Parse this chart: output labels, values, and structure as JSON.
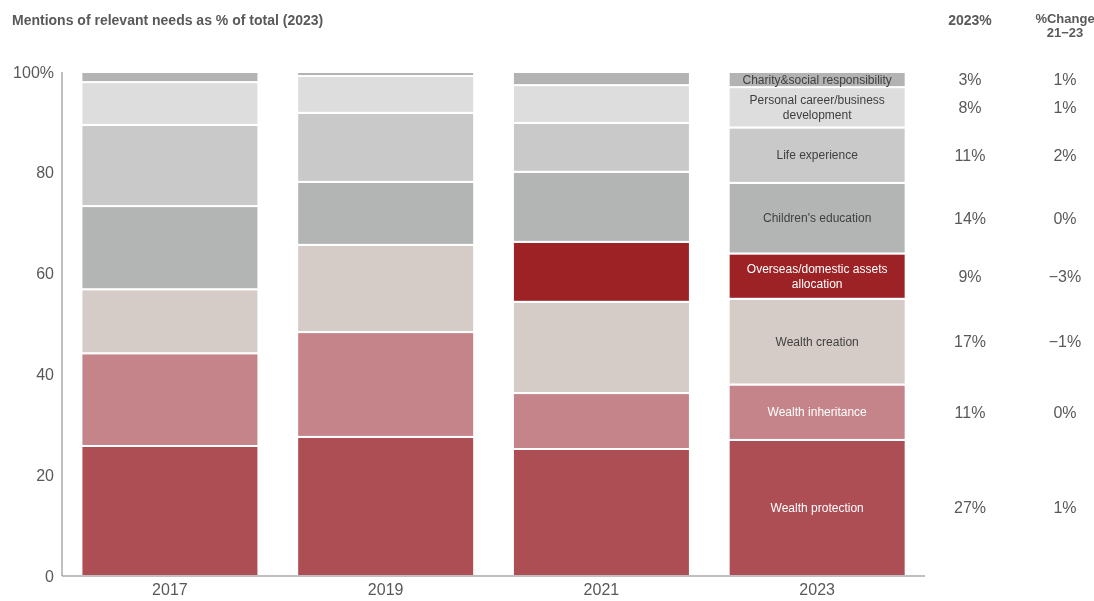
{
  "chart_data": {
    "type": "bar",
    "title": "Mentions of relevant needs as % of total (2023)",
    "stacked": true,
    "categories": [
      "2017",
      "2019",
      "2021",
      "2023"
    ],
    "ylim": [
      0,
      100
    ],
    "yticks": [
      0,
      20,
      40,
      60,
      80,
      {
        "value": 100,
        "label": "100%"
      }
    ],
    "series": [
      {
        "name": "Wealth protection",
        "color": "#ad4e55",
        "values": [
          25.8,
          27.6,
          25.2,
          27
        ]
      },
      {
        "name": "Wealth inheritance",
        "color": "#c4848a",
        "values": [
          18.4,
          20.8,
          11.1,
          11
        ]
      },
      {
        "name": "Wealth creation",
        "color": "#d6ccc7",
        "values": [
          12.7,
          17.3,
          18.1,
          17
        ]
      },
      {
        "name": "Overseas/domestic assets allocation",
        "color": "#9d2226",
        "values": [
          null,
          null,
          11.9,
          9
        ]
      },
      {
        "name": "Children's education",
        "color": "#b3b5b4",
        "values": [
          16.5,
          12.5,
          13.9,
          14
        ]
      },
      {
        "name": "Life experience",
        "color": "#c8c9c8",
        "values": [
          16.1,
          13.7,
          9.7,
          11
        ]
      },
      {
        "name": "Personal career/business development",
        "color": "#dcdddc",
        "values": [
          8.5,
          7.3,
          7.5,
          8
        ]
      },
      {
        "name": "Charity&social responsibility",
        "color": "#b3b3b3",
        "values": [
          2.0,
          0.8,
          2.6,
          3
        ]
      }
    ],
    "annotations": [
      "2023%",
      "%Change 21−23",
      "27%",
      "1%",
      "11%",
      "0%",
      "17%",
      "−1%",
      "9%",
      "−3%",
      "14%",
      "0%",
      "11%",
      "2%",
      "8%",
      "1%",
      "3%",
      "1%"
    ],
    "grid": false,
    "legend": false
  }
}
